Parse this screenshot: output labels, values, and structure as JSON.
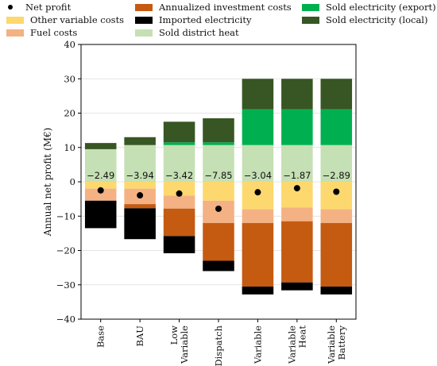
{
  "chart_data": {
    "type": "bar",
    "stacked": true,
    "title": "",
    "xlabel": "",
    "ylabel": "Annual net profit (M€)",
    "ylim": [
      -40,
      40
    ],
    "yticks": [
      -40,
      -30,
      -20,
      -10,
      0,
      10,
      20,
      30,
      40
    ],
    "grid": "y",
    "legend_position": "top",
    "categories": [
      "Base",
      "BAU",
      "Low Variable",
      "Dispatch",
      "Variable",
      "Variable Heat",
      "Variable Battery"
    ],
    "series": [
      {
        "name": "Other variable costs",
        "color": "#fdd86e",
        "values": [
          -2.0,
          -2.0,
          -4.0,
          -5.5,
          -8.0,
          -7.5,
          -8.0
        ]
      },
      {
        "name": "Fuel costs",
        "color": "#f4b183",
        "values": [
          -3.5,
          -4.5,
          -3.8,
          -6.5,
          -4.0,
          -4.0,
          -4.0
        ]
      },
      {
        "name": "Annualized investment costs",
        "color": "#c55a11",
        "values": [
          0,
          -1.2,
          -8.0,
          -11.0,
          -18.5,
          -17.8,
          -18.5
        ]
      },
      {
        "name": "Imported electricity",
        "color": "#000000",
        "values": [
          -8.0,
          -9.0,
          -5.0,
          -3.0,
          -2.3,
          -2.3,
          -2.3
        ]
      },
      {
        "name": "Sold district heat",
        "color": "#c5e0b4",
        "values": [
          9.5,
          10.7,
          10.7,
          10.7,
          10.7,
          10.7,
          10.7
        ]
      },
      {
        "name": "Sold electricity (export)",
        "color": "#00b050",
        "values": [
          0,
          0,
          0.8,
          0.8,
          10.4,
          10.4,
          10.4
        ]
      },
      {
        "name": "Sold electricity (local)",
        "color": "#375623",
        "values": [
          1.8,
          2.3,
          6.0,
          7.0,
          8.9,
          8.9,
          8.9
        ]
      }
    ],
    "net_profit": {
      "name": "Net profit",
      "values": [
        -2.49,
        -3.94,
        -3.42,
        -7.85,
        -3.04,
        -1.87,
        -2.89
      ],
      "labels": [
        "−2.49",
        "−3.94",
        "−3.42",
        "−7.85",
        "−3.04",
        "−1.87",
        "−2.89"
      ]
    }
  },
  "legend": {
    "col1": [
      "Net profit",
      "Other variable costs",
      "Fuel costs"
    ],
    "col2": [
      "Annualized investment costs",
      "Imported electricity",
      "Sold district heat"
    ],
    "col3": [
      "Sold electricity (export)",
      "Sold electricity (local)"
    ]
  },
  "colors": {
    "other_variable": "#fdd86e",
    "fuel": "#f4b183",
    "investment": "#c55a11",
    "imported": "#000000",
    "district_heat": "#c5e0b4",
    "export": "#00b050",
    "local": "#375623"
  }
}
